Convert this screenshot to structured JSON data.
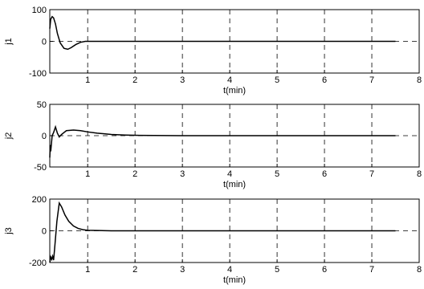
{
  "chart_data": [
    {
      "type": "line",
      "title": "",
      "xlabel": "t(min)",
      "ylabel": "j1",
      "xlim": [
        0.2,
        8
      ],
      "ylim": [
        -100,
        100
      ],
      "xticks": [
        "1",
        "2",
        "3",
        "4",
        "5",
        "6",
        "7",
        "8"
      ],
      "yticks": [
        "-100",
        "0",
        "100"
      ],
      "grid": true,
      "series": [
        {
          "x": [
            0.2,
            0.22,
            0.25,
            0.28,
            0.32,
            0.36,
            0.42,
            0.5,
            0.58,
            0.65,
            0.75,
            0.85,
            0.95,
            1.0,
            1.5,
            3,
            5,
            7.5
          ],
          "y": [
            40,
            70,
            78,
            74,
            55,
            25,
            -5,
            -22,
            -25,
            -20,
            -10,
            -3,
            0,
            0,
            0,
            0,
            0,
            0
          ]
        }
      ]
    },
    {
      "type": "line",
      "title": "",
      "xlabel": "t(min)",
      "ylabel": "j2",
      "xlim": [
        0.2,
        8
      ],
      "ylim": [
        -50,
        50
      ],
      "xticks": [
        "1",
        "2",
        "3",
        "4",
        "5",
        "6",
        "7",
        "8"
      ],
      "yticks": [
        "-50",
        "0",
        "50"
      ],
      "grid": true,
      "series": [
        {
          "x": [
            0.2,
            0.21,
            0.22,
            0.25,
            0.28,
            0.32,
            0.36,
            0.4,
            0.45,
            0.55,
            0.7,
            0.85,
            1.0,
            1.2,
            1.5,
            1.8,
            2.1,
            3,
            5,
            7.5
          ],
          "y": [
            -35,
            -15,
            -25,
            0,
            5,
            14,
            4,
            -2,
            2,
            8,
            9,
            8,
            6,
            4,
            2,
            1,
            0.5,
            0,
            0,
            0
          ]
        }
      ]
    },
    {
      "type": "line",
      "title": "",
      "xlabel": "t(min)",
      "ylabel": "j3",
      "xlim": [
        0.2,
        8
      ],
      "ylim": [
        -200,
        200
      ],
      "xticks": [
        "1",
        "2",
        "3",
        "4",
        "5",
        "6",
        "7",
        "8"
      ],
      "yticks": [
        "-200",
        "0",
        "200"
      ],
      "grid": true,
      "series": [
        {
          "x": [
            0.2,
            0.22,
            0.24,
            0.26,
            0.28,
            0.3,
            0.35,
            0.4,
            0.45,
            0.52,
            0.6,
            0.7,
            0.8,
            0.9,
            1.0,
            1.5,
            3,
            5,
            7.5
          ],
          "y": [
            -200,
            -165,
            -180,
            -160,
            -185,
            -120,
            60,
            175,
            150,
            100,
            60,
            30,
            15,
            7,
            3,
            0,
            0,
            0,
            0
          ]
        }
      ]
    }
  ]
}
